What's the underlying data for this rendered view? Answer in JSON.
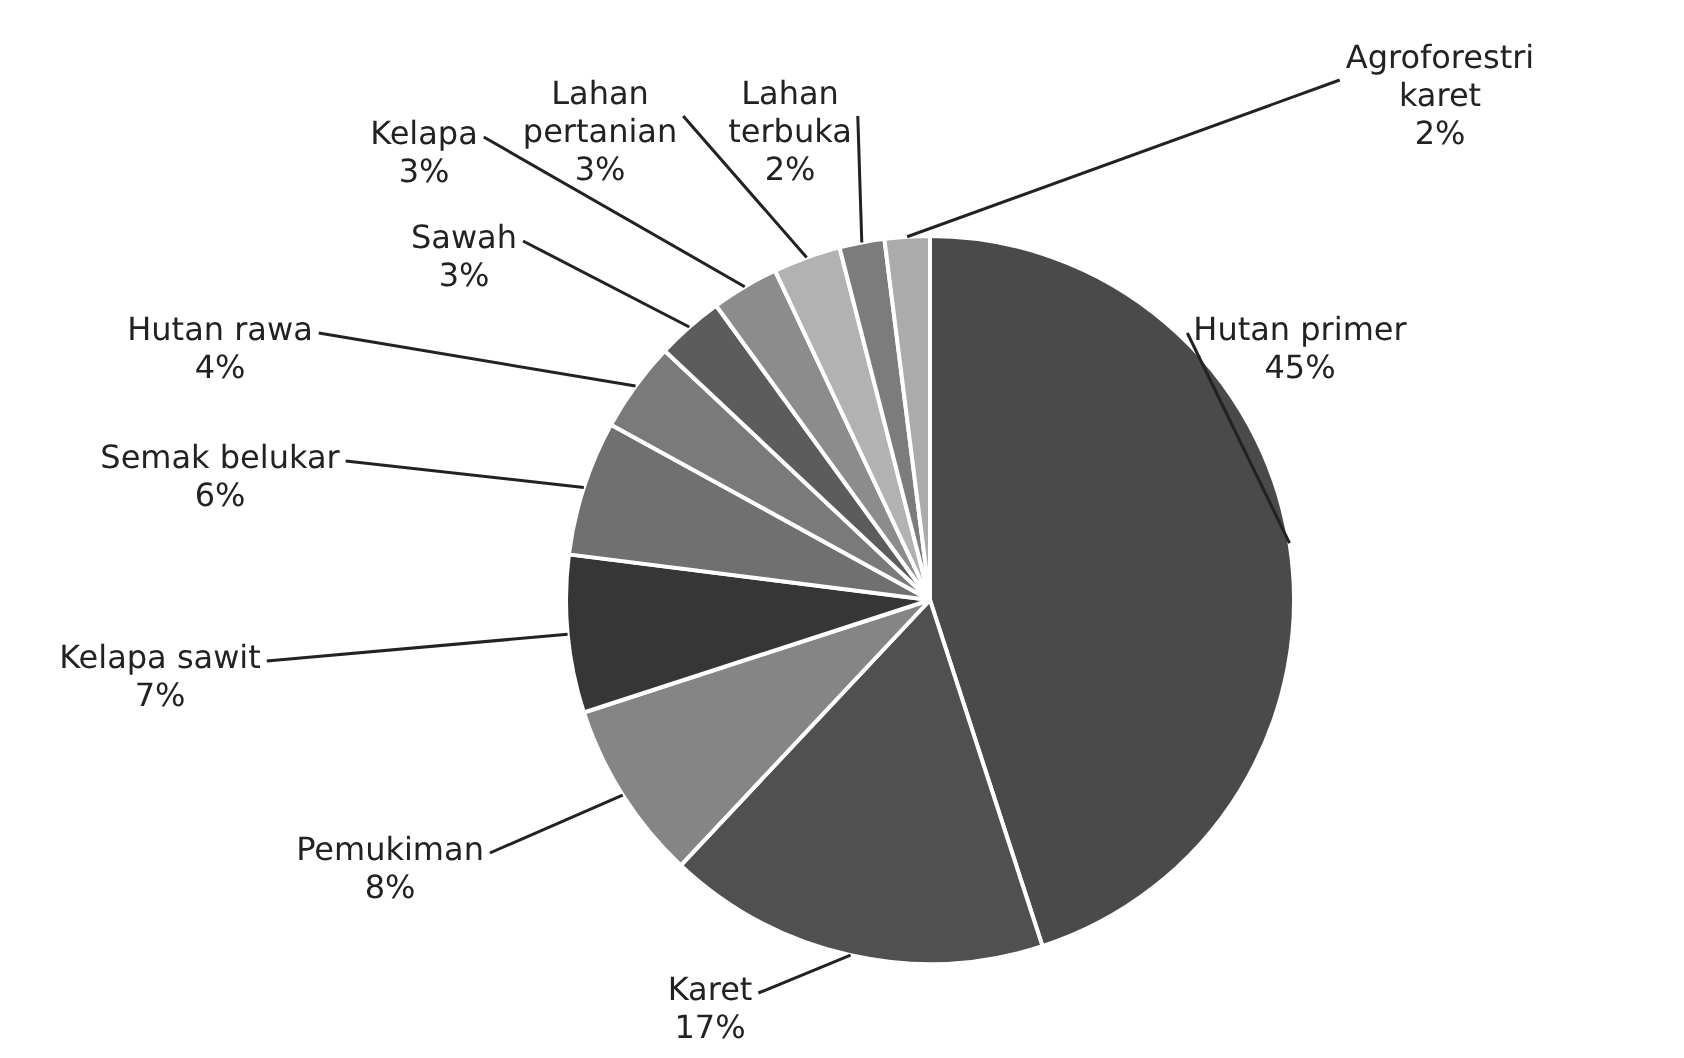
{
  "chart_data": {
    "type": "pie",
    "categories": [
      "Hutan primer",
      "Karet",
      "Pemukiman",
      "Kelapa sawit",
      "Semak belukar",
      "Hutan rawa",
      "Sawah",
      "Kelapa",
      "Lahan pertanian",
      "Lahan terbuka",
      "Agroforestri karet"
    ],
    "values": [
      45,
      17,
      8,
      7,
      6,
      4,
      3,
      3,
      3,
      2,
      2
    ],
    "value_labels": [
      "45%",
      "17%",
      "8%",
      "7%",
      "6%",
      "4%",
      "3%",
      "3%",
      "3%",
      "2%",
      "2%"
    ],
    "colors": [
      "#4a4a4a",
      "#505050",
      "#858585",
      "#363636",
      "#707070",
      "#7a7a7a",
      "#5c5c5c",
      "#8c8c8c",
      "#b2b2b2",
      "#7c7c7c",
      "#ababab"
    ],
    "legend": false
  }
}
